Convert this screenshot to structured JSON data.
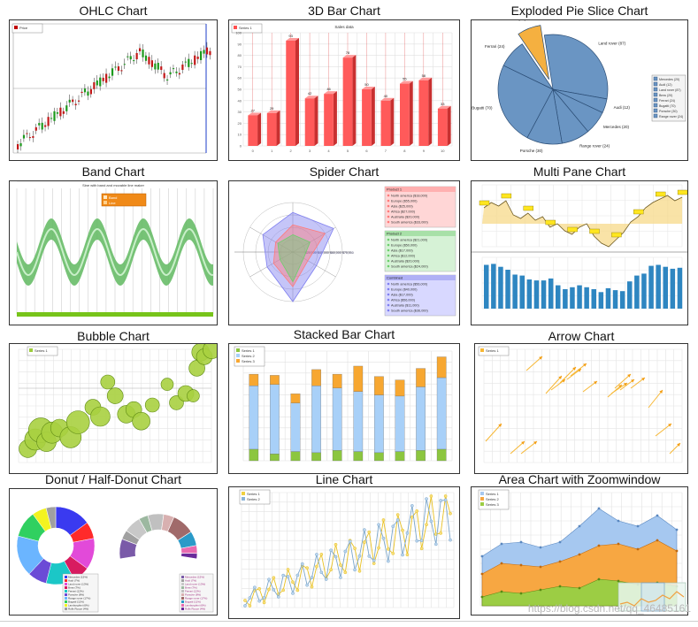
{
  "charts": [
    {
      "id": "ohlc",
      "title": "OHLC Chart",
      "legend": [
        "Price"
      ]
    },
    {
      "id": "bar3d",
      "title": "3D Bar Chart",
      "subtitle": "Sales data",
      "legend": [
        "Series 1"
      ],
      "values": [
        27,
        29,
        93,
        42,
        46,
        78,
        50,
        40,
        55,
        58,
        33
      ]
    },
    {
      "id": "pie",
      "title": "Exploded Pie Slice Chart",
      "labels": [
        "Land rover (87)",
        "Audi (12)",
        "Mercedes (20)",
        "Range rover (24)",
        "Porsche (30)",
        "Bugatti (70)",
        "Ferrari (24)",
        "Bmw (20)"
      ],
      "legend": [
        "Mercedes (20)",
        "Audi (12)",
        "Land rover (87)",
        "Bmw (20)",
        "Ferrari (24)",
        "Bugatti (70)",
        "Porsche (30)",
        "Range rover (24)"
      ]
    },
    {
      "id": "band",
      "title": "Band Chart",
      "subtitle": "Sine with band and movable line maker",
      "legend": [
        "Band",
        "Line"
      ]
    },
    {
      "id": "spider",
      "title": "Spider Chart",
      "rings": [
        "$20,000",
        "$40,000",
        "$60,000",
        "$75,000"
      ],
      "boxes": [
        {
          "title": "Product 1",
          "items": [
            "North america ($18,000)",
            "Europe ($55,000)",
            "Asia ($25,000)",
            "Africa ($27,000)",
            "Australia ($20,000)",
            "South america ($33,000)"
          ]
        },
        {
          "title": "Product 2",
          "items": [
            "North america ($21,000)",
            "Europe ($50,000)",
            "Asia ($17,000)",
            "Africa ($12,000)",
            "Australia ($20,000)",
            "South america ($24,000)"
          ]
        },
        {
          "title": "Combined",
          "items": [
            "North america ($56,000)",
            "Europe ($40,000)",
            "Asia ($17,000)",
            "Africa ($56,000)",
            "Australia ($11,000)",
            "South america ($36,000)"
          ]
        }
      ]
    },
    {
      "id": "multipane",
      "title": "Multi Pane Chart",
      "bars": [
        90,
        92,
        86,
        80,
        70,
        68,
        60,
        58,
        58,
        62,
        48,
        40,
        44,
        48,
        44,
        40,
        34,
        42,
        38,
        36,
        56,
        68,
        72,
        88,
        90,
        86,
        82,
        84
      ]
    },
    {
      "id": "bubble",
      "title": "Bubble Chart",
      "legend": [
        "Series 1"
      ],
      "bubbles": [
        [
          5,
          12,
          10
        ],
        [
          9,
          20,
          12
        ],
        [
          12,
          28,
          14
        ],
        [
          15,
          18,
          11
        ],
        [
          18,
          26,
          12
        ],
        [
          22,
          30,
          10
        ],
        [
          28,
          22,
          12
        ],
        [
          32,
          35,
          13
        ],
        [
          40,
          48,
          9
        ],
        [
          44,
          40,
          11
        ],
        [
          48,
          70,
          8
        ],
        [
          52,
          58,
          9
        ],
        [
          58,
          42,
          10
        ],
        [
          62,
          46,
          9
        ],
        [
          66,
          36,
          10
        ],
        [
          72,
          50,
          8
        ],
        [
          80,
          68,
          7
        ],
        [
          85,
          52,
          8
        ],
        [
          90,
          60,
          9
        ],
        [
          94,
          58,
          7
        ],
        [
          96,
          82,
          9
        ],
        [
          98,
          96,
          10
        ],
        [
          100,
          92,
          9
        ],
        [
          104,
          98,
          10
        ]
      ]
    },
    {
      "id": "stacked",
      "title": "Stacked Bar Chart",
      "legend": [
        "Series 1",
        "Series 2",
        "Series 3"
      ],
      "s1": [
        10,
        6,
        8,
        7,
        9,
        8,
        7,
        8,
        9,
        10
      ],
      "s2": [
        55,
        60,
        42,
        58,
        54,
        52,
        50,
        48,
        55,
        62
      ],
      "s3": [
        10,
        8,
        8,
        14,
        12,
        22,
        16,
        14,
        16,
        18
      ]
    },
    {
      "id": "arrow",
      "title": "Arrow Chart",
      "legend": [
        "Series 1"
      ]
    },
    {
      "id": "donut",
      "title": "Donut / Half-Donut Chart",
      "legend": [
        "Mercedes (15%)",
        "Audi (7%)",
        "Land rover (13%)",
        "Bmw (7%)",
        "Ferrari (12%)",
        "Porsche (8%)",
        "Range rover (17%)",
        "Bugatti (11%)",
        "Lamborghini (6%)",
        "Rolls Royce (4%)"
      ],
      "slices": [
        15,
        7,
        13,
        7,
        12,
        8,
        17,
        11,
        6,
        4
      ],
      "colors": [
        "#3a3af0",
        "#ff2a2a",
        "#e24ad9",
        "#d81b60",
        "#1bc7c7",
        "#6b4bd6",
        "#6bb5ff",
        "#30d060",
        "#f3f320",
        "#a0a0a0"
      ]
    },
    {
      "id": "line",
      "title": "Line Chart",
      "legend": [
        "Series 1",
        "Series 2"
      ]
    },
    {
      "id": "area",
      "title": "Area Chart with Zoomwindow",
      "legend": [
        "Series 1",
        "Series 2",
        "Series 3"
      ]
    }
  ],
  "chart_data": [
    {
      "type": "bar",
      "title": "3D Bar Chart",
      "categories": [
        "0",
        "1",
        "2",
        "3",
        "4",
        "5",
        "6",
        "7",
        "8",
        "9",
        "10"
      ],
      "values": [
        27,
        29,
        93,
        42,
        46,
        78,
        50,
        40,
        55,
        58,
        33
      ],
      "ylim": [
        0,
        100
      ]
    },
    {
      "type": "pie",
      "title": "Exploded Pie Slice Chart",
      "labels": [
        "Land rover",
        "Audi",
        "Mercedes",
        "Range rover",
        "Porsche",
        "Bugatti",
        "Ferrari",
        "Bmw"
      ],
      "values": [
        87,
        12,
        20,
        24,
        30,
        70,
        24,
        20
      ]
    },
    {
      "type": "bar",
      "title": "Stacked Bar Chart",
      "series": [
        {
          "name": "Series 1",
          "values": [
            10,
            6,
            8,
            7,
            9,
            8,
            7,
            8,
            9,
            10
          ]
        },
        {
          "name": "Series 2",
          "values": [
            55,
            60,
            42,
            58,
            54,
            52,
            50,
            48,
            55,
            62
          ]
        },
        {
          "name": "Series 3",
          "values": [
            10,
            8,
            8,
            14,
            12,
            22,
            16,
            14,
            16,
            18
          ]
        }
      ]
    },
    {
      "type": "pie",
      "title": "Donut / Half-Donut Chart",
      "labels": [
        "Mercedes",
        "Audi",
        "Land rover",
        "Bmw",
        "Ferrari",
        "Porsche",
        "Range rover",
        "Bugatti",
        "Lamborghini",
        "Rolls Royce"
      ],
      "values": [
        15,
        7,
        13,
        7,
        12,
        8,
        17,
        11,
        6,
        4
      ]
    }
  ],
  "watermark": "https://blog.csdn.net/qq_46485161"
}
